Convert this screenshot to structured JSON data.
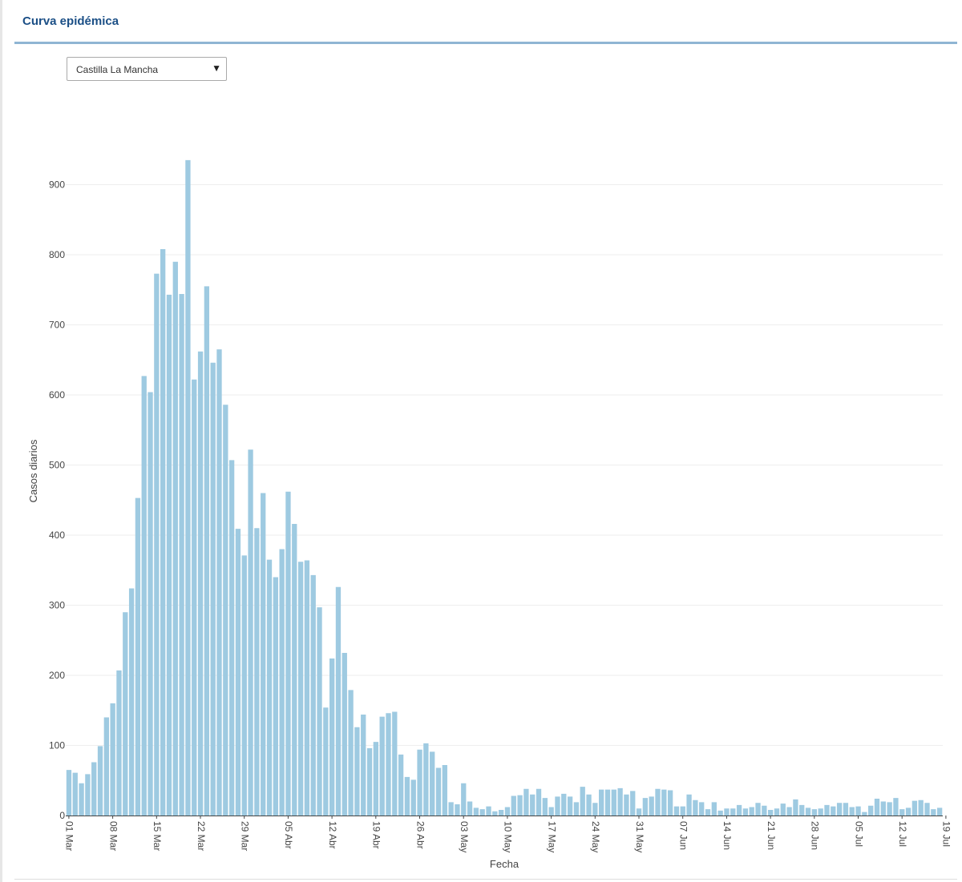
{
  "header": {
    "title": "Curva epidémica"
  },
  "region_select": {
    "value": "Castilla La Mancha",
    "arrow": "▼"
  },
  "chart_data": {
    "type": "bar",
    "xlabel": "Fecha",
    "ylabel": "Casos diarios",
    "ylim": [
      0,
      1000
    ],
    "yticks": [
      0,
      100,
      200,
      300,
      400,
      500,
      600,
      700,
      800,
      900
    ],
    "grid": true,
    "bar_color": "#9ecae1",
    "x_tick_labels": [
      "01 Mar",
      "08 Mar",
      "15 Mar",
      "22 Mar",
      "29 Mar",
      "05 Abr",
      "12 Abr",
      "19 Abr",
      "26 Abr",
      "03 May",
      "10 May",
      "17 May",
      "24 May",
      "31 May",
      "07 Jun",
      "14 Jun",
      "21 Jun",
      "28 Jun",
      "05 Jul",
      "12 Jul",
      "19 Jul"
    ],
    "x_start": "2020-03-01",
    "values": [
      65,
      61,
      46,
      59,
      76,
      99,
      140,
      160,
      207,
      290,
      324,
      453,
      627,
      604,
      773,
      808,
      743,
      790,
      744,
      935,
      622,
      662,
      755,
      646,
      665,
      586,
      507,
      409,
      371,
      522,
      410,
      460,
      365,
      340,
      380,
      462,
      416,
      362,
      364,
      343,
      297,
      154,
      224,
      326,
      232,
      179,
      126,
      144,
      96,
      105,
      141,
      146,
      148,
      87,
      55,
      51,
      94,
      103,
      91,
      68,
      72,
      19,
      16,
      46,
      20,
      11,
      9,
      13,
      6,
      8,
      12,
      28,
      29,
      38,
      30,
      38,
      25,
      12,
      27,
      31,
      27,
      19,
      41,
      30,
      18,
      37,
      37,
      37,
      39,
      30,
      35,
      10,
      25,
      27,
      38,
      37,
      36,
      13,
      13,
      30,
      22,
      19,
      9,
      19,
      7,
      10,
      10,
      15,
      10,
      12,
      18,
      14,
      8,
      10,
      17,
      12,
      23,
      15,
      11,
      9,
      10,
      15,
      13,
      18,
      18,
      12,
      13,
      5,
      14,
      24,
      20,
      19,
      25,
      9,
      11,
      21,
      22,
      18,
      9,
      11
    ],
    "last_value": 11
  }
}
